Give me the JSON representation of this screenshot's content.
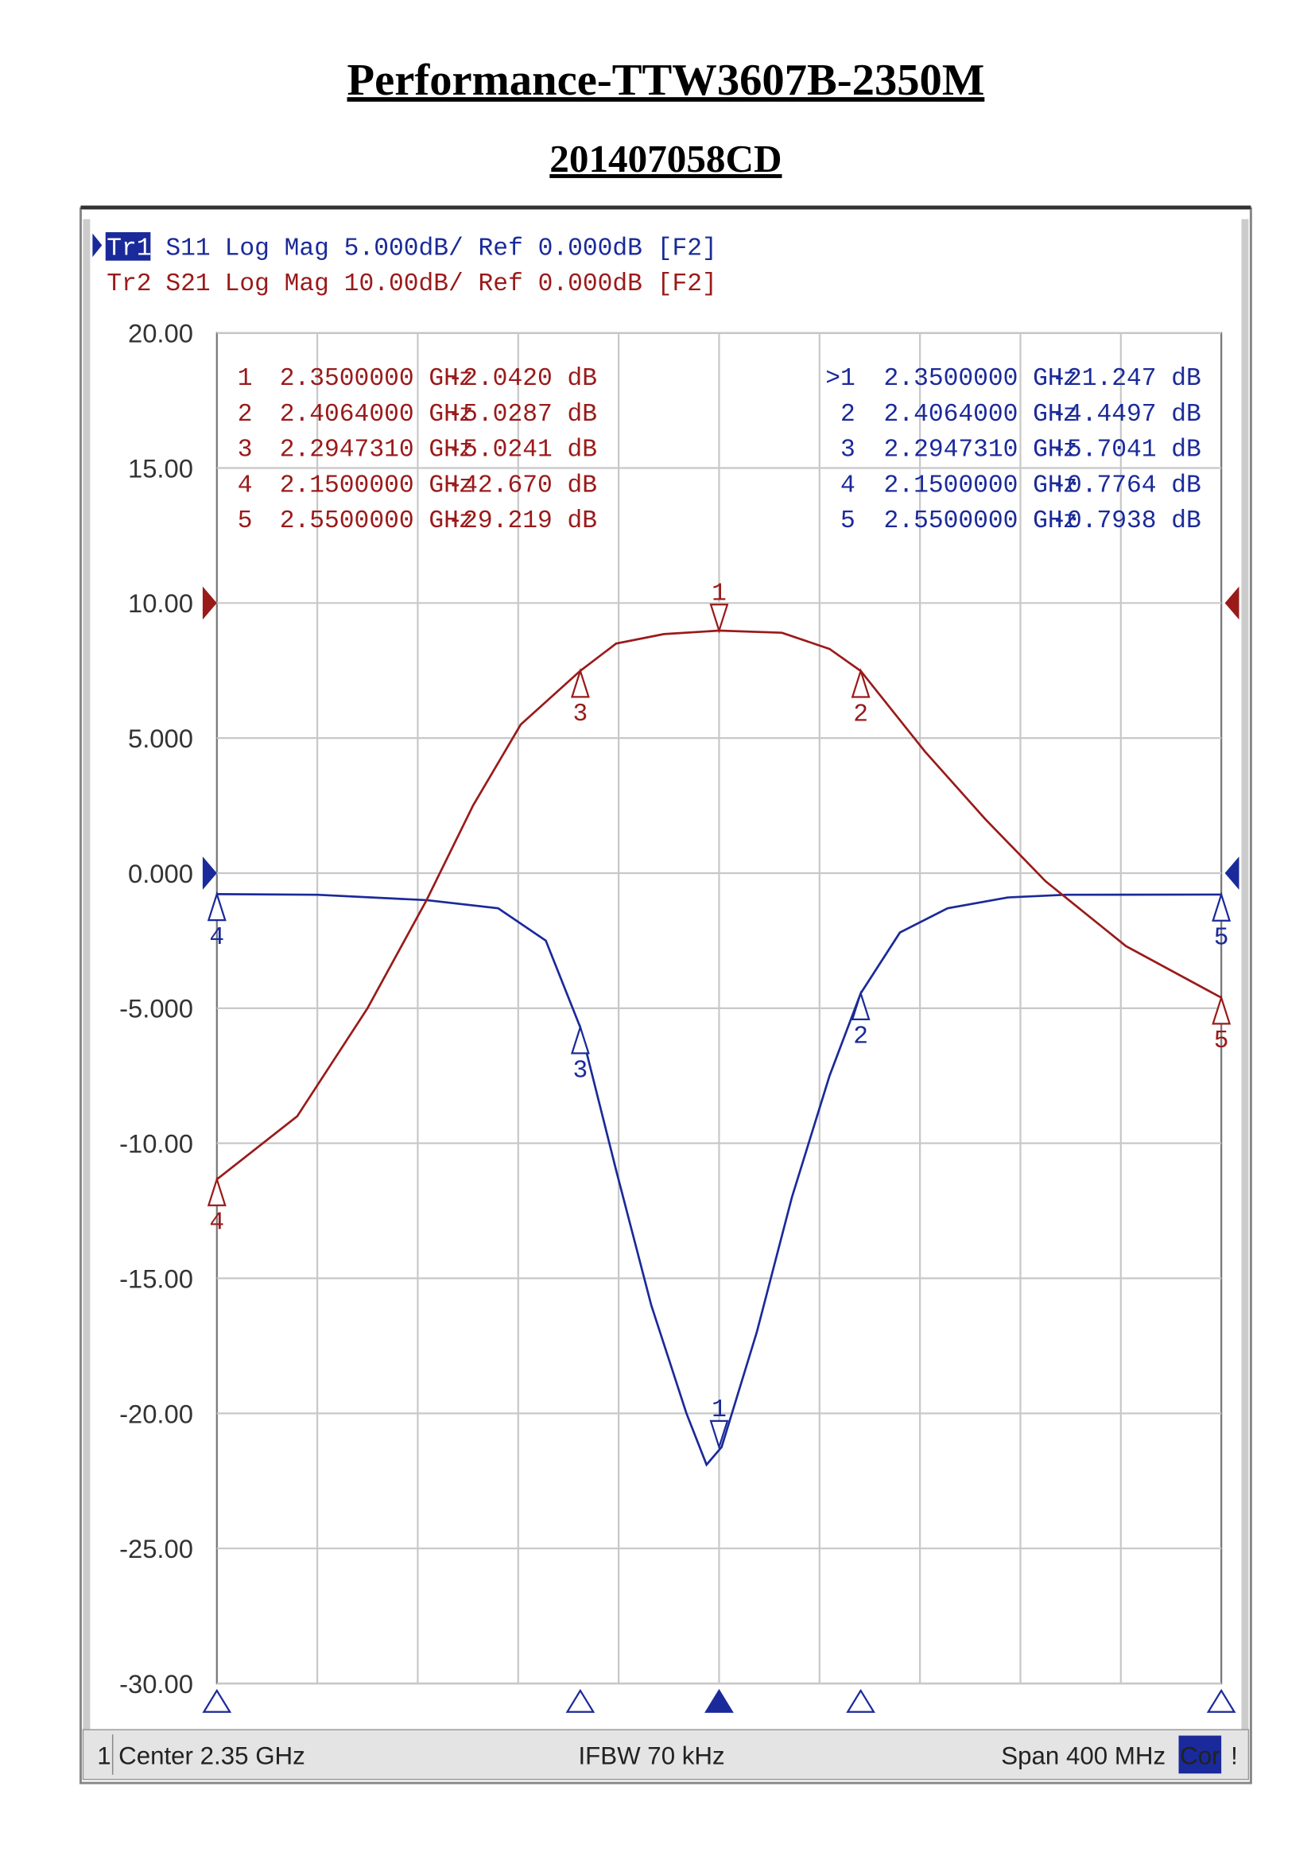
{
  "chart_data": {
    "type": "line",
    "title": "Performance-TTW3607B-2350M",
    "subtitle": "201407058CD",
    "xlim": [
      2.15,
      2.55
    ],
    "ylim": [
      -30,
      20
    ],
    "y2lim": [
      -80,
      20
    ],
    "yticks": [
      {
        "value": 20,
        "label": "20.00"
      },
      {
        "value": 15,
        "label": "15.00"
      },
      {
        "value": 10,
        "label": "10.00"
      },
      {
        "value": 5,
        "label": "5.000"
      },
      {
        "value": 0,
        "label": "0.000"
      },
      {
        "value": -5,
        "label": "-5.000"
      },
      {
        "value": -10,
        "label": "-10.00"
      },
      {
        "value": -15,
        "label": "-15.00"
      },
      {
        "value": -20,
        "label": "-20.00"
      },
      {
        "value": -25,
        "label": "-25.00"
      },
      {
        "value": -30,
        "label": "-30.00"
      }
    ],
    "grid": true,
    "series": [
      {
        "trace": "Tr1",
        "name": "S11",
        "format": "Log Mag 5.000dB/ Ref 0.000dB [F2]",
        "color": "#1a2a9a",
        "x": [
          2.15,
          2.19,
          2.2335,
          2.262,
          2.281,
          2.2947,
          2.309,
          2.323,
          2.337,
          2.345,
          2.351,
          2.365,
          2.379,
          2.394,
          2.4064,
          2.422,
          2.441,
          2.465,
          2.488,
          2.55
        ],
        "values": [
          -0.7764,
          -0.8,
          -1.0,
          -1.3,
          -2.5,
          -5.7041,
          -11,
          -16,
          -20,
          -21.9,
          -21.247,
          -17,
          -12,
          -7.5,
          -4.4497,
          -2.2,
          -1.3,
          -0.9,
          -0.8,
          -0.7938
        ],
        "markers": [
          {
            "id": "1",
            "row_label": ">1",
            "x": 2.35,
            "value": -21.247,
            "x_label": "2.3500000 GHz",
            "value_label": "-21.247 dB"
          },
          {
            "id": "2",
            "x": 2.4064,
            "value": -4.4497,
            "x_label": "2.4064000 GHz",
            "value_label": "-4.4497 dB"
          },
          {
            "id": "3",
            "x": 2.294731,
            "value": -5.7041,
            "x_label": "2.2947310 GHz",
            "value_label": "-5.7041 dB"
          },
          {
            "id": "4",
            "x": 2.15,
            "value": -0.7764,
            "x_label": "2.1500000 GHz",
            "value_label": "-0.7764 dB"
          },
          {
            "id": "5",
            "x": 2.55,
            "value": -0.7938,
            "x_label": "2.5500000 GHz",
            "value_label": "-0.7938 dB"
          }
        ]
      },
      {
        "trace": "Tr2",
        "name": "S21",
        "format": "Log Mag 10.00dB/ Ref 0.000dB [F2]",
        "color": "#9a1a1a",
        "axis": "y2",
        "x": [
          2.15,
          2.182,
          2.21,
          2.2335,
          2.252,
          2.271,
          2.2947,
          2.309,
          2.328,
          2.35,
          2.375,
          2.394,
          2.4064,
          2.432,
          2.456,
          2.48,
          2.512,
          2.55
        ],
        "values": [
          -42.67,
          -38,
          -30,
          -22,
          -15,
          -9,
          -5.0241,
          -3,
          -2.3,
          -2.042,
          -2.2,
          -3.4,
          -5.0287,
          -11,
          -16,
          -20.6,
          -25.4,
          -29.219
        ],
        "markers": [
          {
            "id": "1",
            "x": 2.35,
            "value": -2.042,
            "x_label": "2.3500000 GHz",
            "value_label": "-2.0420 dB"
          },
          {
            "id": "2",
            "x": 2.4064,
            "value": -5.0287,
            "x_label": "2.4064000 GHz",
            "value_label": "-5.0287 dB"
          },
          {
            "id": "3",
            "x": 2.294731,
            "value": -5.0241,
            "x_label": "2.2947310 GHz",
            "value_label": "-5.0241 dB"
          },
          {
            "id": "4",
            "x": 2.15,
            "value": -42.67,
            "x_label": "2.1500000 GHz",
            "value_label": "-42.670 dB"
          },
          {
            "id": "5",
            "x": 2.55,
            "value": -29.219,
            "x_label": "2.5500000 GHz",
            "value_label": "-29.219 dB"
          }
        ]
      }
    ],
    "status": {
      "channel": "1",
      "center": "Center 2.35 GHz",
      "ifbw": "IFBW 70 kHz",
      "span": "Span 400 MHz",
      "cor": "Cor",
      "flag": "!"
    }
  }
}
